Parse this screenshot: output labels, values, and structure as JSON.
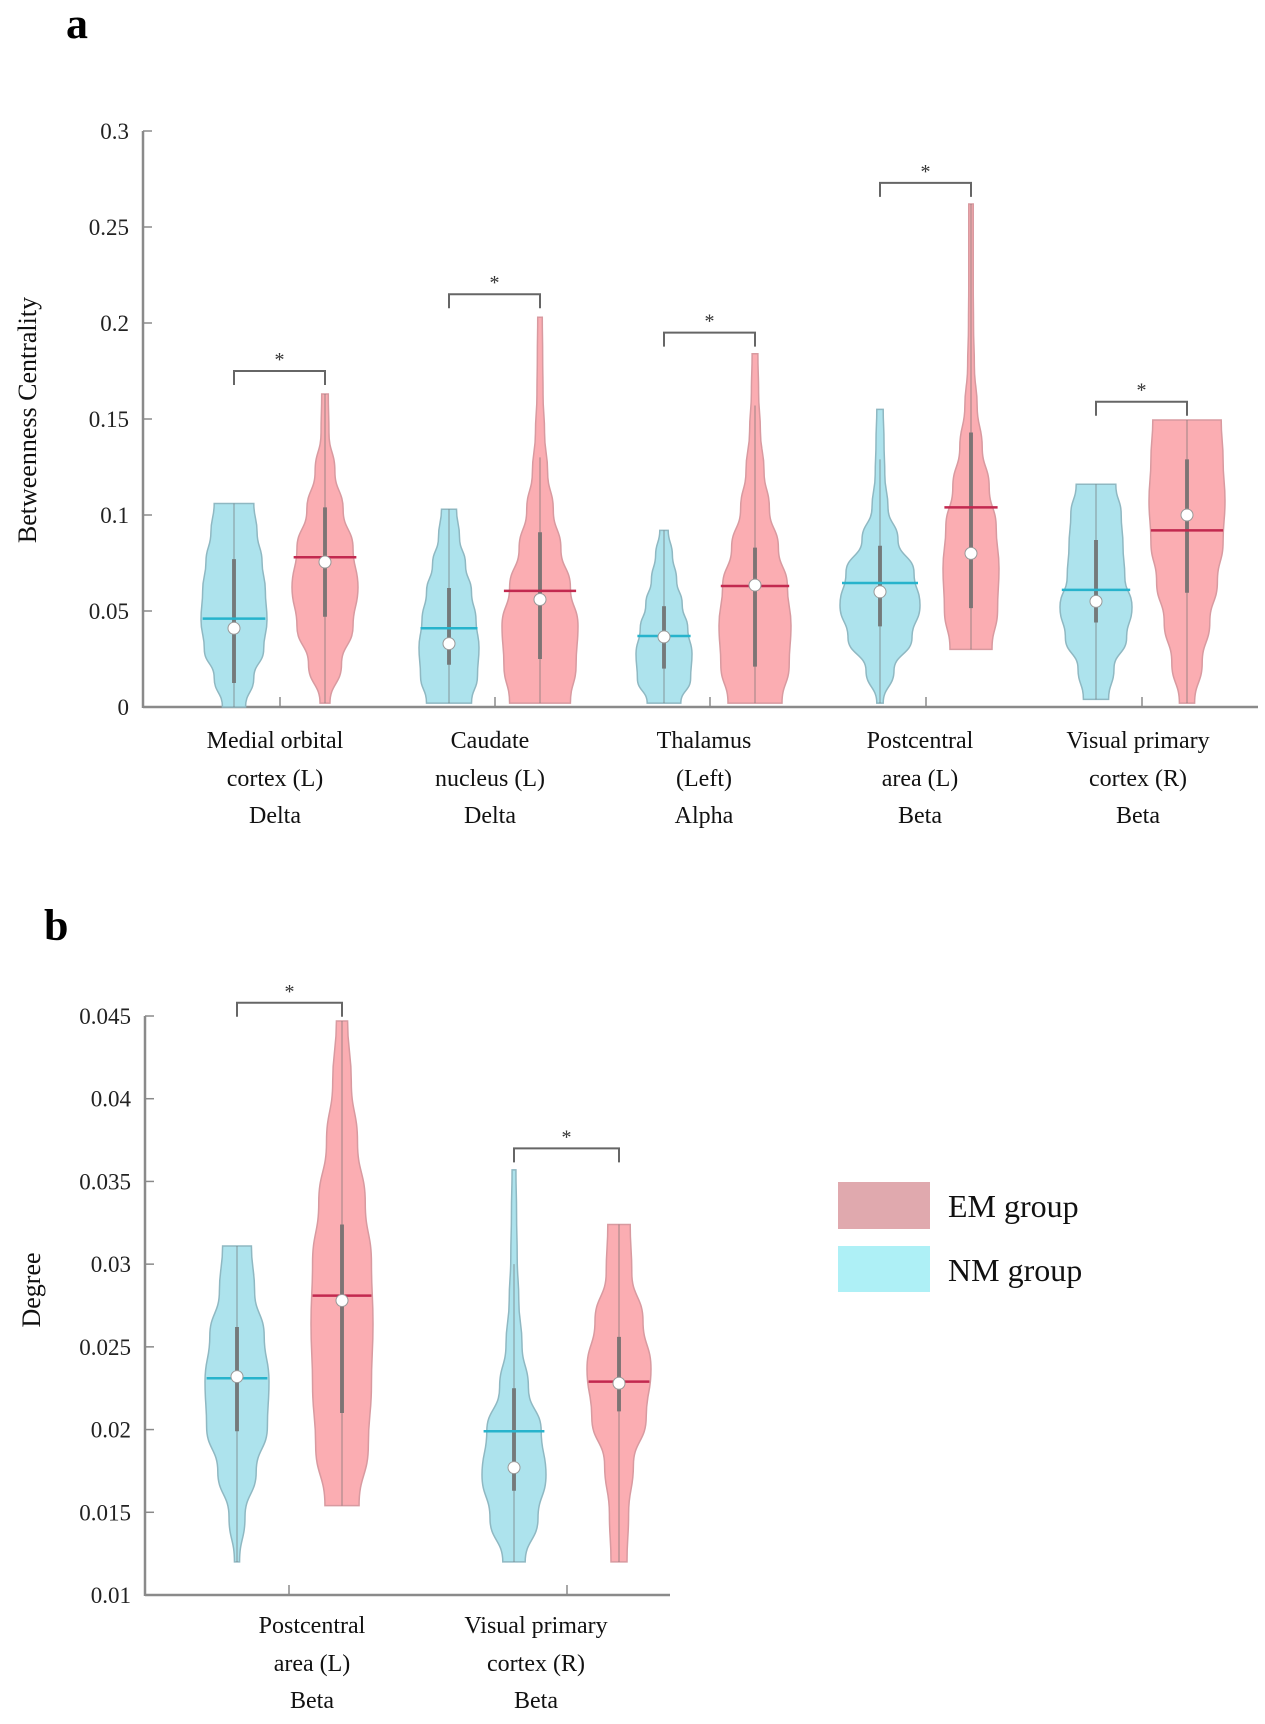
{
  "colors": {
    "nm_fill": "#a9e1ec",
    "nm_stroke": "#8fb8c2",
    "nm_mean": "#27b3cc",
    "em_fill": "#fba9ae",
    "em_stroke": "#d89aa0",
    "em_mean": "#c2294f",
    "whisker": "#6d6d6d",
    "axis": "#8a8a8a",
    "legend_em": "#e0a9ae",
    "legend_nm": "#aef0f6"
  },
  "legend": {
    "items": [
      {
        "label": "EM group",
        "color_key": "legend_em"
      },
      {
        "label": "NM group",
        "color_key": "legend_nm"
      }
    ],
    "placement": "right of panel b"
  },
  "chart_data": [
    {
      "panel": "a",
      "type": "violin",
      "ylabel": "Betweenness Centrality",
      "ylim": [
        0,
        0.3
      ],
      "yticks": [
        "0",
        "0.05",
        "0.1",
        "0.15",
        "0.2",
        "0.25",
        "0.3"
      ],
      "ytick_values": [
        0,
        0.05,
        0.1,
        0.15,
        0.2,
        0.25,
        0.3
      ],
      "categories": [
        {
          "lines": [
            "Medial  orbital",
            "cortex  (L)",
            "Delta"
          ]
        },
        {
          "lines": [
            "Caudate",
            "nucleus  (L)",
            "Delta"
          ]
        },
        {
          "lines": [
            "Thalamus",
            "(Left)",
            "Alpha"
          ]
        },
        {
          "lines": [
            "Postcentral",
            "area (L)",
            "Beta"
          ]
        },
        {
          "lines": [
            "Visual  primary",
            "cortex  (R)",
            "Beta"
          ]
        }
      ],
      "significance": [
        {
          "label": "*",
          "level": 0.175
        },
        {
          "label": "*",
          "level": 0.215
        },
        {
          "label": "*",
          "level": 0.195
        },
        {
          "label": "*",
          "level": 0.273
        },
        {
          "label": "*",
          "level": 0.159
        }
      ],
      "series": [
        {
          "name": "NM group",
          "groups": [
            {
              "min": 0.0,
              "max": 0.106,
              "mean": 0.046,
              "median": 0.041,
              "q1": 0.0125,
              "q3": 0.077,
              "whisker_hi": 0.106,
              "shape": [
                0.35,
                0.6,
                0.9,
                1.0,
                0.95,
                0.85,
                0.7,
                0.6
              ],
              "top_flat": true
            },
            {
              "min": 0.002,
              "max": 0.103,
              "mean": 0.041,
              "median": 0.033,
              "q1": 0.022,
              "q3": 0.062,
              "whisker_hi": 0.103,
              "shape": [
                0.75,
                0.95,
                1.0,
                0.9,
                0.75,
                0.55,
                0.35,
                0.25
              ],
              "top_flat": true
            },
            {
              "min": 0.002,
              "max": 0.092,
              "mean": 0.037,
              "median": 0.0365,
              "q1": 0.02,
              "q3": 0.0525,
              "whisker_hi": 0.092,
              "shape": [
                0.6,
                0.95,
                1.0,
                0.85,
                0.65,
                0.45,
                0.3,
                0.15
              ],
              "top_flat": true
            },
            {
              "min": 0.002,
              "max": 0.155,
              "mean": 0.0646,
              "median": 0.06,
              "q1": 0.042,
              "q3": 0.084,
              "whisker_hi": 0.129,
              "shape": [
                0.08,
                0.35,
                0.8,
                1.0,
                0.85,
                0.45,
                0.2,
                0.12,
                0.1,
                0.08
              ],
              "top_flat": true
            },
            {
              "min": 0.004,
              "max": 0.116,
              "mean": 0.061,
              "median": 0.055,
              "q1": 0.044,
              "q3": 0.087,
              "whisker_hi": 0.116,
              "shape": [
                0.35,
                0.5,
                0.85,
                1.0,
                0.8,
                0.75,
                0.7,
                0.55
              ],
              "top_flat": true
            }
          ]
        },
        {
          "name": "EM group",
          "groups": [
            {
              "min": 0.002,
              "max": 0.163,
              "mean": 0.078,
              "median": 0.0755,
              "q1": 0.047,
              "q3": 0.104,
              "whisker_hi": 0.163,
              "shape": [
                0.15,
                0.5,
                0.85,
                1.0,
                0.85,
                0.55,
                0.3,
                0.12,
                0.1
              ],
              "top_flat": true
            },
            {
              "min": 0.002,
              "max": 0.203,
              "mean": 0.0605,
              "median": 0.056,
              "q1": 0.025,
              "q3": 0.091,
              "whisker_hi": 0.13,
              "shape": [
                0.8,
                0.95,
                1.0,
                0.8,
                0.55,
                0.35,
                0.2,
                0.12,
                0.08,
                0.07,
                0.06
              ],
              "top_flat": true
            },
            {
              "min": 0.002,
              "max": 0.184,
              "mean": 0.063,
              "median": 0.0635,
              "q1": 0.021,
              "q3": 0.083,
              "whisker_hi": 0.157,
              "shape": [
                0.75,
                0.95,
                1.0,
                0.9,
                0.65,
                0.4,
                0.25,
                0.15,
                0.1,
                0.08
              ],
              "top_flat": true
            },
            {
              "min": 0.03,
              "max": 0.262,
              "mean": 0.104,
              "median": 0.08,
              "q1": 0.0515,
              "q3": 0.143,
              "whisker_hi": 0.262,
              "shape": [
                0.75,
                0.95,
                1.0,
                0.9,
                0.65,
                0.4,
                0.22,
                0.12,
                0.09,
                0.08,
                0.08,
                0.08
              ],
              "top_flat": true
            },
            {
              "min": 0.002,
              "max": 0.1495,
              "mean": 0.092,
              "median": 0.1,
              "q1": 0.0595,
              "q3": 0.129,
              "whisker_hi": 0.1495,
              "shape": [
                0.2,
                0.4,
                0.6,
                0.8,
                0.95,
                1.0,
                0.95,
                0.9
              ],
              "top_flat": true
            }
          ]
        }
      ]
    },
    {
      "panel": "b",
      "type": "violin",
      "ylabel": "Degree",
      "ylim": [
        0.01,
        0.045
      ],
      "yticks": [
        "0.01",
        "0.015",
        "0.02",
        "0.025",
        "0.03",
        "0.035",
        "0.04",
        "0.045"
      ],
      "ytick_values": [
        0.01,
        0.015,
        0.02,
        0.025,
        0.03,
        0.035,
        0.04,
        0.045
      ],
      "categories": [
        {
          "lines": [
            "Postcentral",
            "area (L)",
            "Beta"
          ]
        },
        {
          "lines": [
            "Visual  primary",
            "cortex  (R)",
            "Beta"
          ]
        }
      ],
      "significance": [
        {
          "label": "*",
          "level": 0.0458
        },
        {
          "label": "*",
          "level": 0.037
        }
      ],
      "series": [
        {
          "name": "NM group",
          "groups": [
            {
              "min": 0.012,
              "max": 0.0311,
              "mean": 0.0231,
              "median": 0.0232,
              "q1": 0.0199,
              "q3": 0.0262,
              "whisker_hi": 0.0311,
              "shape": [
                0.08,
                0.25,
                0.6,
                0.95,
                1.0,
                0.85,
                0.55,
                0.45
              ],
              "top_flat": true
            },
            {
              "min": 0.012,
              "max": 0.0357,
              "mean": 0.0199,
              "median": 0.0177,
              "q1": 0.0163,
              "q3": 0.0225,
              "whisker_hi": 0.03,
              "shape": [
                0.35,
                0.75,
                1.0,
                0.85,
                0.45,
                0.25,
                0.15,
                0.1,
                0.08,
                0.06
              ],
              "top_flat": true
            }
          ]
        },
        {
          "name": "EM group",
          "groups": [
            {
              "min": 0.0154,
              "max": 0.0447,
              "mean": 0.0281,
              "median": 0.0278,
              "q1": 0.021,
              "q3": 0.0324,
              "whisker_hi": 0.0447,
              "shape": [
                0.55,
                0.85,
                0.95,
                1.0,
                0.95,
                0.75,
                0.5,
                0.3,
                0.18
              ],
              "top_flat": true
            },
            {
              "min": 0.012,
              "max": 0.0324,
              "mean": 0.0229,
              "median": 0.0228,
              "q1": 0.0211,
              "q3": 0.0256,
              "whisker_hi": 0.0324,
              "shape": [
                0.25,
                0.3,
                0.45,
                0.85,
                1.0,
                0.75,
                0.4,
                0.35
              ],
              "top_flat": true
            }
          ]
        }
      ]
    }
  ],
  "panels": {
    "a_label": "a",
    "b_label": "b"
  }
}
